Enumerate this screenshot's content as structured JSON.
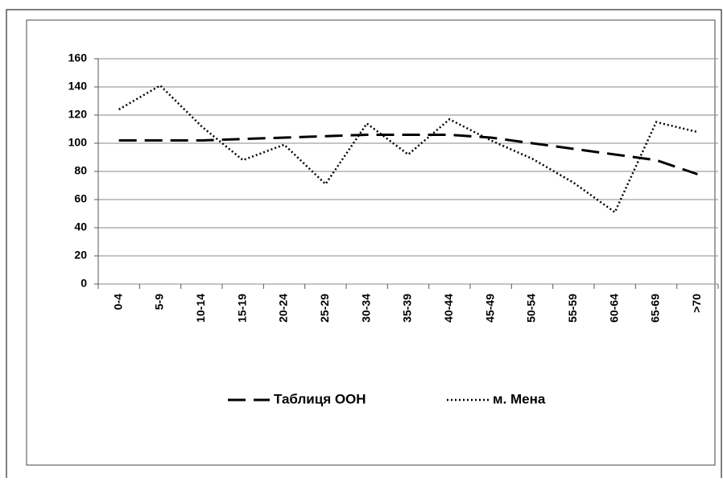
{
  "chart_data": {
    "type": "line",
    "categories": [
      "0-4",
      "5-9",
      "10-14",
      "15-19",
      "20-24",
      "25-29",
      "30-34",
      "35-39",
      "40-44",
      "45-49",
      "50-54",
      "55-59",
      "60-64",
      "65-69",
      ">70"
    ],
    "series": [
      {
        "name": "Таблиця ООН",
        "color": "#000000",
        "dash": "dashed",
        "values": [
          102,
          102,
          102,
          103,
          104,
          105,
          106,
          106,
          106,
          104,
          100,
          96,
          92,
          88,
          78
        ]
      },
      {
        "name": "м. Мена",
        "color": "#000000",
        "dash": "dotted",
        "values": [
          124,
          141,
          112,
          88,
          99,
          71,
          114,
          92,
          117,
          102,
          89,
          72,
          51,
          115,
          108
        ]
      }
    ],
    "ylim": [
      0,
      160
    ],
    "yticks": [
      0,
      20,
      40,
      60,
      80,
      100,
      120,
      140,
      160
    ],
    "grid": true,
    "legend": "bottom"
  }
}
